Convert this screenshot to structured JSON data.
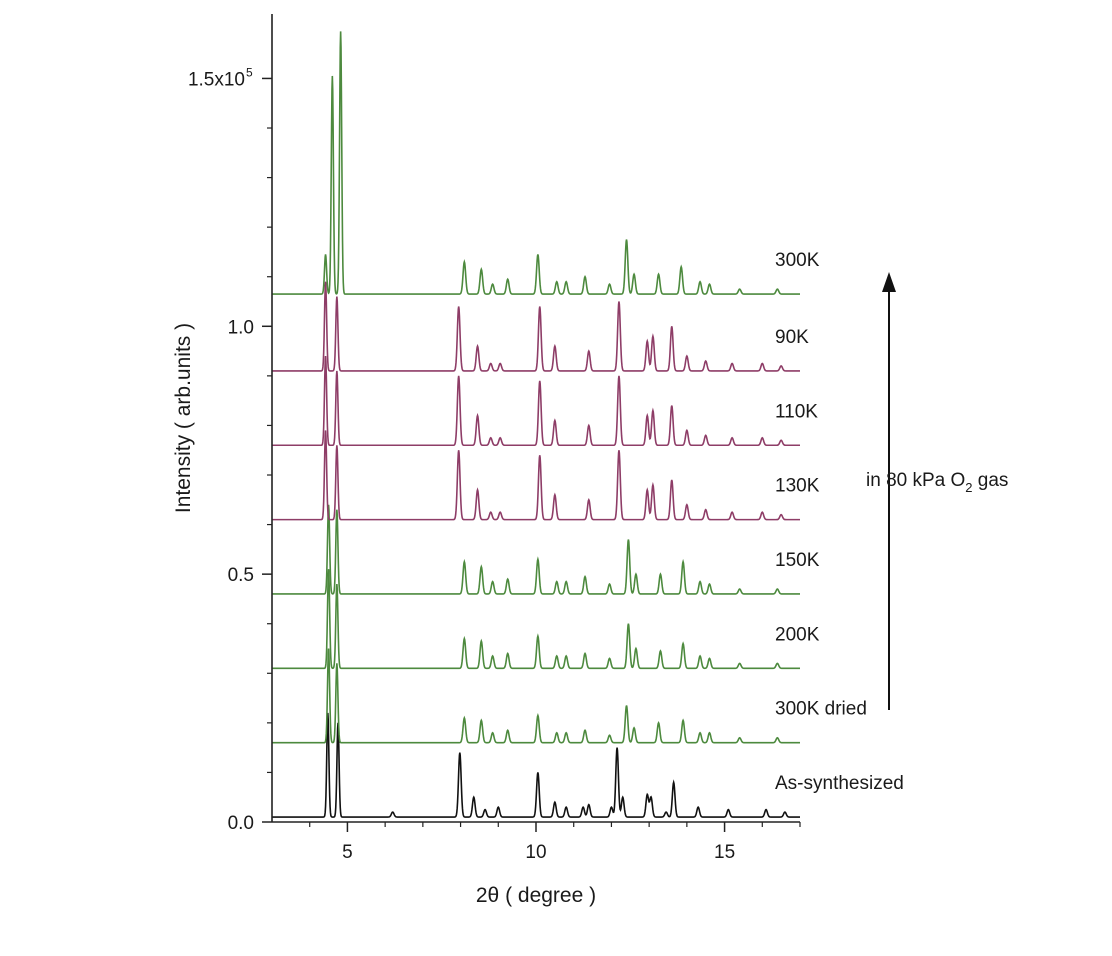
{
  "chart_data": {
    "type": "line",
    "xlabel": "2θ ( degree )",
    "ylabel": "Intensity ( arb.units )",
    "xlim": [
      3,
      17
    ],
    "ylim": [
      0,
      1.63
    ],
    "x_ticks": [
      5,
      10,
      15
    ],
    "y_ticks": [
      {
        "value": 0.0,
        "label": "0.0"
      },
      {
        "value": 0.5,
        "label": "0.5"
      },
      {
        "value": 1.0,
        "label": "1.0"
      },
      {
        "value": 1.5,
        "label": "1.5x10",
        "sup": "5"
      }
    ],
    "grid": false,
    "legend": "none",
    "annotation": {
      "text": "in  80 kPa  O",
      "sub": "2",
      "after": " gas",
      "arrow": "up"
    },
    "series": [
      {
        "name": "As-synthesized",
        "baseline": 0.01,
        "color": "#111111",
        "peaks": [
          [
            4.48,
            0.21
          ],
          [
            4.75,
            0.19
          ],
          [
            6.2,
            0.01
          ],
          [
            7.98,
            0.13
          ],
          [
            8.35,
            0.04
          ],
          [
            8.65,
            0.015
          ],
          [
            9.0,
            0.02
          ],
          [
            10.05,
            0.09
          ],
          [
            10.5,
            0.03
          ],
          [
            10.8,
            0.02
          ],
          [
            11.25,
            0.02
          ],
          [
            11.4,
            0.025
          ],
          [
            12.0,
            0.02
          ],
          [
            12.15,
            0.14
          ],
          [
            12.3,
            0.04
          ],
          [
            12.95,
            0.045
          ],
          [
            13.05,
            0.04
          ],
          [
            13.45,
            0.01
          ],
          [
            13.65,
            0.07
          ],
          [
            14.3,
            0.02
          ],
          [
            15.1,
            0.015
          ],
          [
            16.1,
            0.015
          ],
          [
            16.6,
            0.01
          ]
        ]
      },
      {
        "name": "300K dried",
        "baseline": 0.16,
        "color": "#4d8a3e",
        "peaks": [
          [
            4.5,
            0.19
          ],
          [
            4.72,
            0.16
          ],
          [
            8.1,
            0.05
          ],
          [
            8.55,
            0.045
          ],
          [
            8.85,
            0.02
          ],
          [
            9.25,
            0.025
          ],
          [
            10.05,
            0.055
          ],
          [
            10.55,
            0.02
          ],
          [
            10.8,
            0.02
          ],
          [
            11.3,
            0.025
          ],
          [
            11.95,
            0.015
          ],
          [
            12.4,
            0.075
          ],
          [
            12.6,
            0.03
          ],
          [
            13.25,
            0.04
          ],
          [
            13.9,
            0.045
          ],
          [
            14.35,
            0.02
          ],
          [
            14.6,
            0.02
          ],
          [
            15.4,
            0.01
          ],
          [
            16.4,
            0.01
          ]
        ]
      },
      {
        "name": "200K",
        "baseline": 0.31,
        "color": "#4d8a3e",
        "peaks": [
          [
            4.5,
            0.2
          ],
          [
            4.72,
            0.17
          ],
          [
            8.1,
            0.06
          ],
          [
            8.55,
            0.055
          ],
          [
            8.85,
            0.025
          ],
          [
            9.25,
            0.03
          ],
          [
            10.05,
            0.065
          ],
          [
            10.55,
            0.025
          ],
          [
            10.8,
            0.025
          ],
          [
            11.3,
            0.03
          ],
          [
            11.95,
            0.02
          ],
          [
            12.45,
            0.09
          ],
          [
            12.65,
            0.04
          ],
          [
            13.3,
            0.035
          ],
          [
            13.9,
            0.05
          ],
          [
            14.35,
            0.025
          ],
          [
            14.6,
            0.02
          ],
          [
            15.4,
            0.01
          ],
          [
            16.4,
            0.01
          ]
        ]
      },
      {
        "name": "150K",
        "baseline": 0.46,
        "color": "#4d8a3e",
        "peaks": [
          [
            4.5,
            0.18
          ],
          [
            4.72,
            0.17
          ],
          [
            8.1,
            0.065
          ],
          [
            8.55,
            0.055
          ],
          [
            8.85,
            0.025
          ],
          [
            9.25,
            0.03
          ],
          [
            10.05,
            0.07
          ],
          [
            10.55,
            0.025
          ],
          [
            10.8,
            0.025
          ],
          [
            11.3,
            0.035
          ],
          [
            11.95,
            0.02
          ],
          [
            12.45,
            0.11
          ],
          [
            12.65,
            0.04
          ],
          [
            13.3,
            0.04
          ],
          [
            13.9,
            0.065
          ],
          [
            14.35,
            0.025
          ],
          [
            14.6,
            0.02
          ],
          [
            15.4,
            0.01
          ],
          [
            16.4,
            0.01
          ]
        ]
      },
      {
        "name": "130K",
        "baseline": 0.61,
        "color": "#8e3d67",
        "peaks": [
          [
            4.42,
            0.18
          ],
          [
            4.72,
            0.15
          ],
          [
            7.95,
            0.14
          ],
          [
            8.45,
            0.06
          ],
          [
            8.8,
            0.015
          ],
          [
            9.05,
            0.015
          ],
          [
            10.1,
            0.13
          ],
          [
            10.5,
            0.05
          ],
          [
            11.4,
            0.04
          ],
          [
            12.2,
            0.14
          ],
          [
            12.95,
            0.06
          ],
          [
            13.1,
            0.07
          ],
          [
            13.6,
            0.08
          ],
          [
            14.0,
            0.03
          ],
          [
            14.5,
            0.02
          ],
          [
            15.2,
            0.015
          ],
          [
            16.0,
            0.015
          ],
          [
            16.5,
            0.01
          ]
        ]
      },
      {
        "name": "110K",
        "baseline": 0.76,
        "color": "#8e3d67",
        "peaks": [
          [
            4.42,
            0.18
          ],
          [
            4.72,
            0.15
          ],
          [
            7.95,
            0.14
          ],
          [
            8.45,
            0.06
          ],
          [
            8.8,
            0.015
          ],
          [
            9.05,
            0.015
          ],
          [
            10.1,
            0.13
          ],
          [
            10.5,
            0.05
          ],
          [
            11.4,
            0.04
          ],
          [
            12.2,
            0.14
          ],
          [
            12.95,
            0.06
          ],
          [
            13.1,
            0.07
          ],
          [
            13.6,
            0.08
          ],
          [
            14.0,
            0.03
          ],
          [
            14.5,
            0.02
          ],
          [
            15.2,
            0.015
          ],
          [
            16.0,
            0.015
          ],
          [
            16.5,
            0.01
          ]
        ]
      },
      {
        "name": "90K",
        "baseline": 0.91,
        "color": "#8e3d67",
        "peaks": [
          [
            4.42,
            0.18
          ],
          [
            4.72,
            0.15
          ],
          [
            7.95,
            0.13
          ],
          [
            8.45,
            0.05
          ],
          [
            8.8,
            0.015
          ],
          [
            9.05,
            0.015
          ],
          [
            10.1,
            0.13
          ],
          [
            10.5,
            0.05
          ],
          [
            11.4,
            0.04
          ],
          [
            12.2,
            0.14
          ],
          [
            12.95,
            0.06
          ],
          [
            13.1,
            0.07
          ],
          [
            13.6,
            0.09
          ],
          [
            14.0,
            0.03
          ],
          [
            14.5,
            0.02
          ],
          [
            15.2,
            0.015
          ],
          [
            16.0,
            0.015
          ],
          [
            16.5,
            0.01
          ]
        ]
      },
      {
        "name": "300K",
        "baseline": 1.065,
        "color": "#4d8a3e",
        "peaks": [
          [
            4.6,
            0.44
          ],
          [
            4.82,
            0.53
          ],
          [
            4.42,
            0.08
          ],
          [
            8.1,
            0.065
          ],
          [
            8.55,
            0.05
          ],
          [
            8.85,
            0.02
          ],
          [
            9.25,
            0.03
          ],
          [
            10.05,
            0.08
          ],
          [
            10.55,
            0.025
          ],
          [
            10.8,
            0.025
          ],
          [
            11.3,
            0.035
          ],
          [
            11.95,
            0.02
          ],
          [
            12.4,
            0.11
          ],
          [
            12.6,
            0.04
          ],
          [
            13.25,
            0.04
          ],
          [
            13.85,
            0.055
          ],
          [
            14.35,
            0.025
          ],
          [
            14.6,
            0.02
          ],
          [
            15.4,
            0.01
          ],
          [
            16.4,
            0.01
          ]
        ]
      }
    ]
  }
}
